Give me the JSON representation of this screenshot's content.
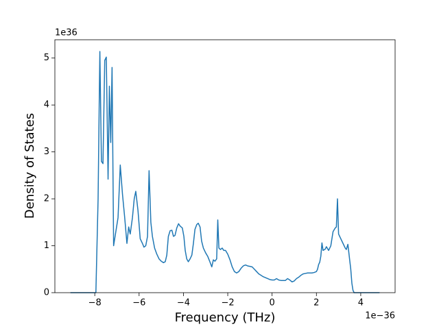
{
  "chart_data": {
    "type": "line",
    "xlabel": "Frequency (THz)",
    "ylabel": "Density of States",
    "x_offset_text": "1e−36",
    "y_offset_text": "1e36",
    "color": "#1f77b4",
    "x": [
      -9.1,
      -7.95,
      -7.85,
      -7.8,
      -7.77,
      -7.7,
      -7.63,
      -7.55,
      -7.48,
      -7.4,
      -7.34,
      -7.28,
      -7.22,
      -7.15,
      -7.05,
      -6.95,
      -6.85,
      -6.75,
      -6.65,
      -6.55,
      -6.47,
      -6.4,
      -6.3,
      -6.22,
      -6.15,
      -6.05,
      -5.95,
      -5.85,
      -5.78,
      -5.7,
      -5.62,
      -5.55,
      -5.47,
      -5.4,
      -5.3,
      -5.2,
      -5.1,
      -5.0,
      -4.9,
      -4.82,
      -4.75,
      -4.68,
      -4.6,
      -4.52,
      -4.45,
      -4.38,
      -4.3,
      -4.22,
      -4.15,
      -4.05,
      -3.98,
      -3.92,
      -3.85,
      -3.78,
      -3.7,
      -3.62,
      -3.55,
      -3.48,
      -3.4,
      -3.33,
      -3.25,
      -3.18,
      -3.1,
      -3.0,
      -2.9,
      -2.8,
      -2.72,
      -2.65,
      -2.58,
      -2.5,
      -2.45,
      -2.4,
      -2.33,
      -2.25,
      -2.18,
      -2.1,
      -2.0,
      -1.9,
      -1.8,
      -1.7,
      -1.6,
      -1.5,
      -1.4,
      -1.3,
      -1.2,
      -1.1,
      -1.0,
      -0.9,
      -0.8,
      -0.7,
      -0.6,
      -0.5,
      -0.4,
      -0.3,
      -0.2,
      -0.1,
      0.0,
      0.1,
      0.2,
      0.3,
      0.4,
      0.5,
      0.6,
      0.7,
      0.8,
      0.9,
      1.0,
      1.1,
      1.2,
      1.3,
      1.4,
      1.5,
      1.6,
      1.7,
      1.8,
      1.9,
      2.0,
      2.05,
      2.1,
      2.15,
      2.2,
      2.25,
      2.3,
      2.4,
      2.45,
      2.55,
      2.65,
      2.75,
      2.85,
      2.9,
      2.95,
      3.0,
      3.1,
      3.2,
      3.3,
      3.35,
      3.42,
      3.5,
      3.55,
      3.6,
      3.65,
      3.7,
      4.85
    ],
    "values": [
      0,
      0,
      2.0,
      4.0,
      5.14,
      2.8,
      2.75,
      4.95,
      5.02,
      2.42,
      4.4,
      3.2,
      4.8,
      1.0,
      1.3,
      1.6,
      2.72,
      2.1,
      1.6,
      1.05,
      1.4,
      1.25,
      1.6,
      2.0,
      2.16,
      1.75,
      1.15,
      1.05,
      0.97,
      1.0,
      1.2,
      2.6,
      1.5,
      1.2,
      0.95,
      0.82,
      0.72,
      0.67,
      0.64,
      0.66,
      0.8,
      1.2,
      1.32,
      1.33,
      1.2,
      1.22,
      1.38,
      1.47,
      1.42,
      1.38,
      1.2,
      0.9,
      0.72,
      0.66,
      0.72,
      0.8,
      1.05,
      1.35,
      1.45,
      1.48,
      1.4,
      1.1,
      0.95,
      0.85,
      0.77,
      0.65,
      0.55,
      0.7,
      0.67,
      0.72,
      1.55,
      0.95,
      0.92,
      0.95,
      0.9,
      0.9,
      0.82,
      0.7,
      0.55,
      0.45,
      0.42,
      0.45,
      0.52,
      0.57,
      0.59,
      0.57,
      0.56,
      0.55,
      0.5,
      0.45,
      0.4,
      0.37,
      0.34,
      0.32,
      0.3,
      0.28,
      0.27,
      0.27,
      0.3,
      0.27,
      0.26,
      0.26,
      0.26,
      0.3,
      0.27,
      0.23,
      0.25,
      0.3,
      0.33,
      0.37,
      0.4,
      0.41,
      0.42,
      0.42,
      0.42,
      0.43,
      0.45,
      0.5,
      0.6,
      0.65,
      0.78,
      1.06,
      0.9,
      0.93,
      0.98,
      0.9,
      1.0,
      1.3,
      1.38,
      1.4,
      2.0,
      1.25,
      1.15,
      1.05,
      0.95,
      0.92,
      1.03,
      0.7,
      0.5,
      0.2,
      0.05,
      0,
      0
    ],
    "xlim": [
      -9.8,
      5.55
    ],
    "ylim": [
      0,
      5.39
    ],
    "xticks": [
      {
        "value": -8,
        "label": "−8"
      },
      {
        "value": -6,
        "label": "−6"
      },
      {
        "value": -4,
        "label": "−4"
      },
      {
        "value": -2,
        "label": "−2"
      },
      0,
      2,
      4
    ],
    "yticks": [
      0,
      1,
      2,
      3,
      4,
      5
    ]
  }
}
